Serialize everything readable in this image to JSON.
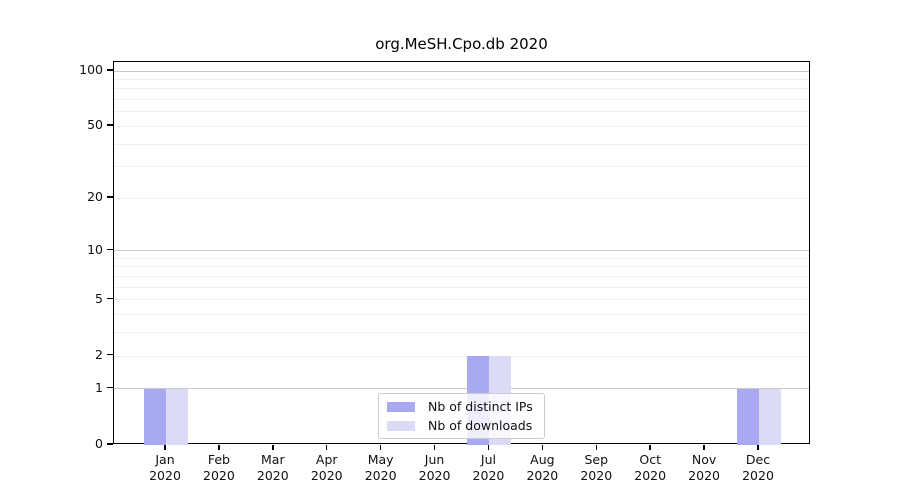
{
  "title": "org.MeSH.Cpo.db 2020",
  "colors": {
    "distinct_ips": "#a9a9f1",
    "downloads": "#dbdbf8",
    "grid_minor": "#f0f0f0",
    "grid_major": "#c9c9c9",
    "axis": "#000000"
  },
  "legend": {
    "items": [
      {
        "label": "Nb of distinct IPs",
        "color_key": "distinct_ips"
      },
      {
        "label": "Nb of downloads",
        "color_key": "downloads"
      }
    ]
  },
  "chart_data": {
    "type": "bar",
    "title": "org.MeSH.Cpo.db 2020",
    "xlabel": "",
    "ylabel": "",
    "categories": [
      "Jan 2020",
      "Feb 2020",
      "Mar 2020",
      "Apr 2020",
      "May 2020",
      "Jun 2020",
      "Jul 2020",
      "Aug 2020",
      "Sep 2020",
      "Oct 2020",
      "Nov 2020",
      "Dec 2020"
    ],
    "series": [
      {
        "name": "Nb of distinct IPs",
        "color_key": "distinct_ips",
        "values": [
          1,
          0,
          0,
          0,
          0,
          0,
          2,
          0,
          0,
          0,
          0,
          1
        ]
      },
      {
        "name": "Nb of downloads",
        "color_key": "downloads",
        "values": [
          1,
          0,
          0,
          0,
          0,
          0,
          2,
          0,
          0,
          0,
          0,
          1
        ]
      }
    ],
    "yscale": "log1p",
    "ylim": [
      0,
      112
    ],
    "yticks": [
      0,
      1,
      2,
      5,
      10,
      20,
      50,
      100
    ],
    "gridlines": [
      1,
      2,
      3,
      4,
      5,
      6,
      7,
      8,
      9,
      10,
      20,
      30,
      40,
      50,
      60,
      70,
      80,
      90,
      100
    ],
    "grid": true,
    "legend_position": "bottom-center-inside"
  }
}
